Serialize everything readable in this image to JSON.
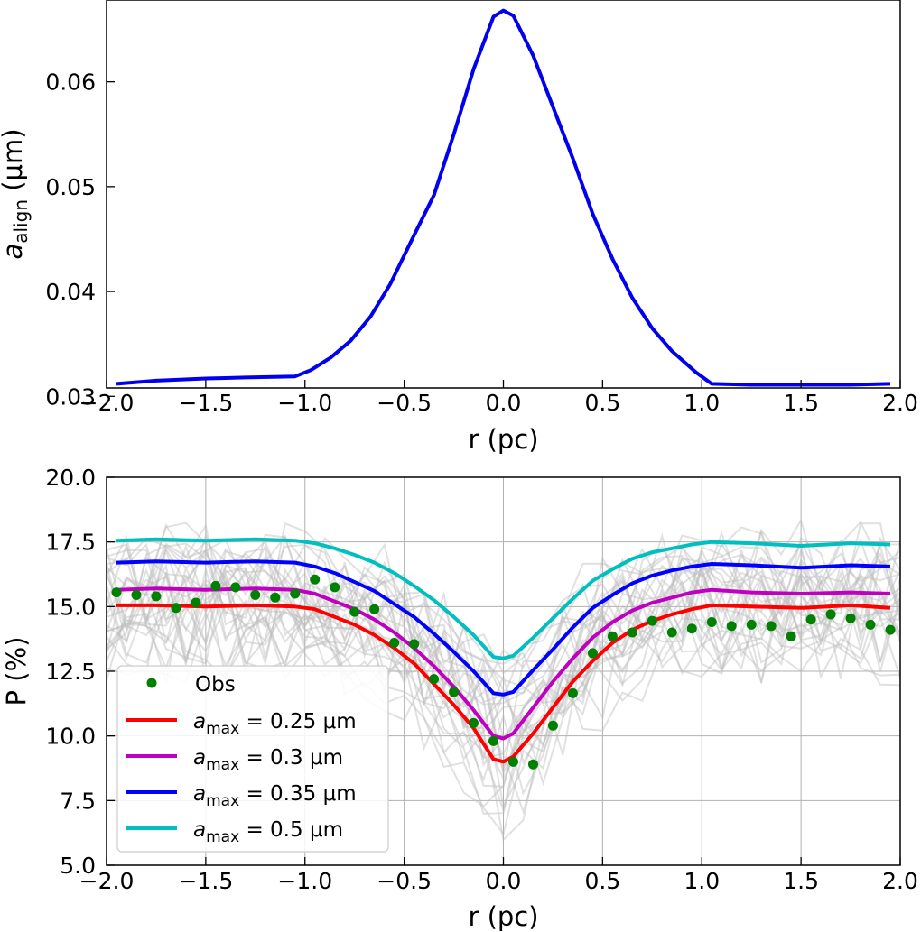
{
  "colors": {
    "series_blue": "#0000ee",
    "red": "#ff0000",
    "magenta": "#c000c0",
    "blue": "#0000ff",
    "cyan": "#00bfbf",
    "obs": "#008000",
    "grid": "#b0b0b0",
    "ensemble": "#bdbdbd"
  },
  "chart_data": [
    {
      "type": "line",
      "title": "",
      "xlabel": "r (pc)",
      "ylabel_main": "a",
      "ylabel_sub": "align",
      "ylabel_unit": " (μm)",
      "xlim": [
        -2.0,
        2.0
      ],
      "ylim": [
        0.0308,
        0.0678
      ],
      "grid": false,
      "x_ticks": [
        -2.0,
        -1.5,
        -1.0,
        -0.5,
        0.0,
        0.5,
        1.0,
        1.5,
        2.0
      ],
      "x_tick_labels": [
        "−2.0",
        "−1.5",
        "−1.0",
        "−0.5",
        "0.0",
        "0.5",
        "1.0",
        "1.5",
        "2.0"
      ],
      "y_ticks": [
        0.03,
        0.04,
        0.05,
        0.06
      ],
      "y_tick_labels": [
        "0.03",
        "0.04",
        "0.05",
        "0.06"
      ],
      "series": [
        {
          "name": "a_align",
          "color": "#0000ee",
          "x": [
            -1.95,
            -1.75,
            -1.5,
            -1.3,
            -1.05,
            -0.97,
            -0.87,
            -0.77,
            -0.67,
            -0.57,
            -0.47,
            -0.35,
            -0.25,
            -0.15,
            -0.05,
            0.0,
            0.05,
            0.15,
            0.25,
            0.35,
            0.45,
            0.55,
            0.65,
            0.75,
            0.85,
            0.97,
            1.05,
            1.25,
            1.5,
            1.75,
            1.95
          ],
          "y": [
            0.0312,
            0.0315,
            0.0317,
            0.0318,
            0.0319,
            0.0325,
            0.0337,
            0.0353,
            0.0376,
            0.0407,
            0.0446,
            0.0492,
            0.055,
            0.0612,
            0.0662,
            0.0668,
            0.0663,
            0.0625,
            0.0576,
            0.0527,
            0.0474,
            0.0431,
            0.0394,
            0.0365,
            0.0343,
            0.0323,
            0.0312,
            0.0311,
            0.0311,
            0.0311,
            0.0312
          ]
        }
      ]
    },
    {
      "type": "line",
      "title": "",
      "xlabel": "r (pc)",
      "ylabel": "P (%)",
      "xlim": [
        -2.0,
        2.0
      ],
      "ylim": [
        5.0,
        20.0
      ],
      "grid": true,
      "x_ticks": [
        -2.0,
        -1.5,
        -1.0,
        -0.5,
        0.0,
        0.5,
        1.0,
        1.5,
        2.0
      ],
      "x_tick_labels": [
        "−2.0",
        "−1.5",
        "−1.0",
        "−0.5",
        "0.0",
        "0.5",
        "1.0",
        "1.5",
        "2.0"
      ],
      "y_ticks": [
        5.0,
        7.5,
        10.0,
        12.5,
        15.0,
        17.5,
        20.0
      ],
      "y_tick_labels": [
        "5.0",
        "7.5",
        "10.0",
        "12.5",
        "15.0",
        "17.5",
        "20.0"
      ],
      "legend_position": "lower-left",
      "legend": [
        {
          "label": "Obs",
          "kind": "marker",
          "color": "#008000"
        },
        {
          "label_main": "a",
          "label_sub": "max",
          "label_rest": " = 0.25 μm",
          "kind": "line",
          "color": "#ff0000"
        },
        {
          "label_main": "a",
          "label_sub": "max",
          "label_rest": " = 0.3 μm",
          "kind": "line",
          "color": "#c000c0"
        },
        {
          "label_main": "a",
          "label_sub": "max",
          "label_rest": " = 0.35 μm",
          "kind": "line",
          "color": "#0000ff"
        },
        {
          "label_main": "a",
          "label_sub": "max",
          "label_rest": " = 0.5 μm",
          "kind": "line",
          "color": "#00bfbf"
        }
      ],
      "obs": {
        "x": [
          -1.95,
          -1.85,
          -1.75,
          -1.65,
          -1.55,
          -1.45,
          -1.35,
          -1.25,
          -1.15,
          -1.05,
          -0.95,
          -0.85,
          -0.75,
          -0.65,
          -0.55,
          -0.45,
          -0.35,
          -0.25,
          -0.15,
          -0.05,
          0.05,
          0.15,
          0.25,
          0.35,
          0.45,
          0.55,
          0.65,
          0.75,
          0.85,
          0.95,
          1.05,
          1.15,
          1.25,
          1.35,
          1.45,
          1.55,
          1.65,
          1.75,
          1.85,
          1.95
        ],
        "y": [
          15.55,
          15.45,
          15.4,
          14.95,
          15.15,
          15.8,
          15.75,
          15.45,
          15.35,
          15.5,
          16.05,
          15.75,
          14.8,
          14.9,
          13.6,
          13.55,
          12.2,
          11.7,
          10.5,
          9.8,
          9.0,
          8.9,
          10.4,
          11.65,
          13.2,
          13.85,
          14.0,
          14.45,
          14.0,
          14.15,
          14.4,
          14.25,
          14.3,
          14.25,
          13.85,
          14.5,
          14.7,
          14.55,
          14.3,
          14.1
        ]
      },
      "series": [
        {
          "name": "a_max = 0.25 μm",
          "color": "#ff0000",
          "x": [
            -1.95,
            -1.75,
            -1.5,
            -1.25,
            -1.05,
            -0.95,
            -0.85,
            -0.75,
            -0.65,
            -0.55,
            -0.45,
            -0.35,
            -0.25,
            -0.15,
            -0.05,
            0.0,
            0.05,
            0.15,
            0.25,
            0.35,
            0.45,
            0.55,
            0.65,
            0.75,
            0.85,
            0.95,
            1.05,
            1.25,
            1.5,
            1.75,
            1.95
          ],
          "y": [
            15.05,
            15.05,
            15.0,
            15.05,
            15.0,
            14.9,
            14.6,
            14.3,
            13.9,
            13.4,
            12.8,
            12.0,
            11.2,
            10.3,
            9.1,
            9.0,
            9.2,
            10.1,
            11.1,
            12.1,
            12.9,
            13.6,
            14.1,
            14.45,
            14.7,
            14.9,
            15.05,
            15.0,
            14.95,
            15.05,
            14.95
          ]
        },
        {
          "name": "a_max = 0.3 μm",
          "color": "#c000c0",
          "x": [
            -1.95,
            -1.75,
            -1.5,
            -1.25,
            -1.05,
            -0.95,
            -0.85,
            -0.75,
            -0.65,
            -0.55,
            -0.45,
            -0.35,
            -0.25,
            -0.15,
            -0.05,
            0.0,
            0.05,
            0.15,
            0.25,
            0.35,
            0.45,
            0.55,
            0.65,
            0.75,
            0.85,
            0.95,
            1.05,
            1.25,
            1.5,
            1.75,
            1.95
          ],
          "y": [
            15.65,
            15.7,
            15.65,
            15.7,
            15.65,
            15.5,
            15.2,
            14.9,
            14.5,
            14.0,
            13.4,
            12.7,
            11.9,
            11.0,
            10.0,
            9.9,
            10.1,
            11.1,
            12.1,
            13.0,
            13.8,
            14.4,
            14.85,
            15.15,
            15.35,
            15.55,
            15.65,
            15.55,
            15.5,
            15.55,
            15.5
          ]
        },
        {
          "name": "a_max = 0.35 μm",
          "color": "#0000ff",
          "x": [
            -1.95,
            -1.75,
            -1.5,
            -1.25,
            -1.05,
            -0.95,
            -0.85,
            -0.75,
            -0.65,
            -0.55,
            -0.45,
            -0.35,
            -0.25,
            -0.15,
            -0.05,
            0.0,
            0.05,
            0.15,
            0.25,
            0.35,
            0.45,
            0.55,
            0.65,
            0.75,
            0.85,
            0.95,
            1.05,
            1.25,
            1.5,
            1.75,
            1.95
          ],
          "y": [
            16.7,
            16.75,
            16.7,
            16.75,
            16.7,
            16.55,
            16.3,
            15.95,
            15.6,
            15.1,
            14.6,
            13.95,
            13.25,
            12.5,
            11.65,
            11.6,
            11.7,
            12.55,
            13.35,
            14.2,
            14.95,
            15.45,
            15.9,
            16.2,
            16.4,
            16.55,
            16.65,
            16.6,
            16.5,
            16.6,
            16.55
          ]
        },
        {
          "name": "a_max = 0.5 μm",
          "color": "#00bfbf",
          "x": [
            -1.95,
            -1.75,
            -1.5,
            -1.25,
            -1.05,
            -0.95,
            -0.85,
            -0.75,
            -0.65,
            -0.55,
            -0.45,
            -0.35,
            -0.25,
            -0.15,
            -0.05,
            0.0,
            0.05,
            0.15,
            0.25,
            0.35,
            0.45,
            0.55,
            0.65,
            0.75,
            0.85,
            0.95,
            1.05,
            1.25,
            1.5,
            1.75,
            1.95
          ],
          "y": [
            17.55,
            17.6,
            17.55,
            17.6,
            17.55,
            17.45,
            17.25,
            17.0,
            16.7,
            16.3,
            15.8,
            15.25,
            14.6,
            13.9,
            13.05,
            13.0,
            13.1,
            13.8,
            14.55,
            15.3,
            16.0,
            16.45,
            16.85,
            17.1,
            17.25,
            17.4,
            17.5,
            17.45,
            17.35,
            17.45,
            17.4
          ]
        }
      ]
    }
  ]
}
